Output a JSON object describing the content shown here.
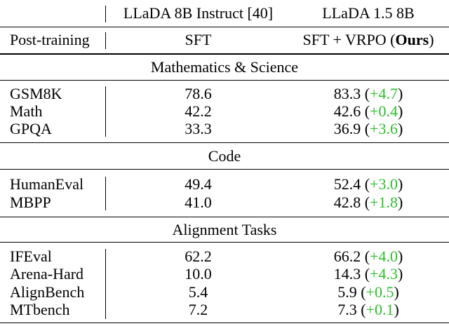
{
  "header": {
    "col2": "LLaDA 8B Instruct [40]",
    "col3": "LLaDA 1.5 8B"
  },
  "post_training": {
    "label": "Post-training",
    "col2": "SFT",
    "col3_prefix": "SFT + VRPO (",
    "col3_bold": "Ours",
    "col3_suffix": ")"
  },
  "sections": [
    {
      "title": "Mathematics & Science",
      "rows": [
        {
          "name": "GSM8K",
          "base": "78.6",
          "ours": "83.3",
          "delta": "+4.7"
        },
        {
          "name": "Math",
          "base": "42.2",
          "ours": "42.6",
          "delta": "+0.4"
        },
        {
          "name": "GPQA",
          "base": "33.3",
          "ours": "36.9",
          "delta": "+3.6"
        }
      ]
    },
    {
      "title": "Code",
      "rows": [
        {
          "name": "HumanEval",
          "base": "49.4",
          "ours": "52.4",
          "delta": "+3.0"
        },
        {
          "name": "MBPP",
          "base": "41.0",
          "ours": "42.8",
          "delta": "+1.8"
        }
      ]
    },
    {
      "title": "Alignment Tasks",
      "rows": [
        {
          "name": "IFEval",
          "base": "62.2",
          "ours": "66.2",
          "delta": "+4.0"
        },
        {
          "name": "Arena-Hard",
          "base": "10.0",
          "ours": "14.3",
          "delta": "+4.3"
        },
        {
          "name": "AlignBench",
          "base": "5.4",
          "ours": "5.9",
          "delta": "+0.5"
        },
        {
          "name": "MTbench",
          "base": "7.2",
          "ours": "7.3",
          "delta": "+0.1"
        }
      ]
    }
  ],
  "colors": {
    "delta": "#2bbf2b"
  }
}
